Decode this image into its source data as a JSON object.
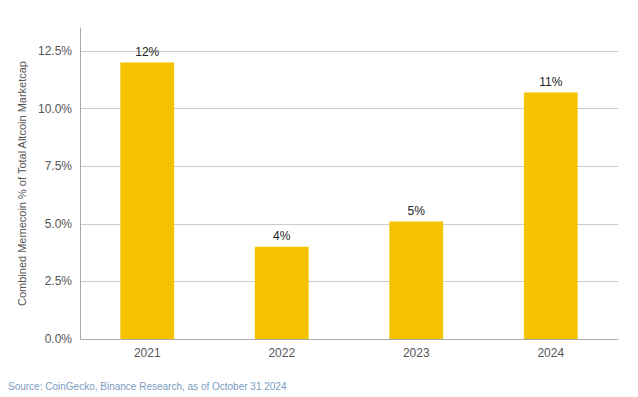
{
  "chart_data": {
    "type": "bar",
    "categories": [
      "2021",
      "2022",
      "2023",
      "2024"
    ],
    "values": [
      12.0,
      4.0,
      5.1,
      10.7
    ],
    "value_labels": [
      "12%",
      "4%",
      "5%",
      "11%"
    ],
    "data_labels": true,
    "color": "#F5C200",
    "ylabel": "Combined Memecoin % of Total Altcoin Marketcap",
    "ylim": [
      0,
      13.5
    ],
    "yticks": [
      {
        "value": 0.0,
        "label": "0.0%"
      },
      {
        "value": 2.5,
        "label": "2.5%"
      },
      {
        "value": 5.0,
        "label": "5.0%"
      },
      {
        "value": 7.5,
        "label": "7.5%"
      },
      {
        "value": 10.0,
        "label": "10.0%"
      },
      {
        "value": 12.5,
        "label": "12.5%"
      }
    ],
    "grid": true,
    "annotations": [
      "Source: CoinGecko, Binance Research, as of October 31 2024"
    ]
  }
}
